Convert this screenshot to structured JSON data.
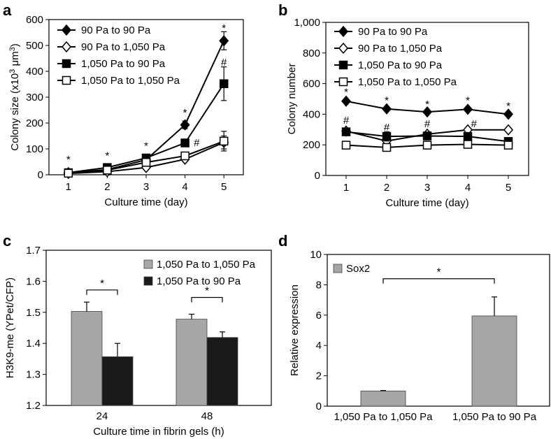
{
  "panels": {
    "a": "a",
    "b": "b",
    "c": "c",
    "d": "d"
  },
  "chart_data": [
    {
      "id": "a",
      "type": "line",
      "ylabel": "Colony size (x10³ μm³)",
      "ylabel_main": "Colony size (x10",
      "ylabel_sup": "3",
      "ylabel_mid": " μm",
      "ylabel_sup2": "3",
      "ylabel_end": ")",
      "xlabel": "Culture time (day)",
      "x": [
        1,
        2,
        3,
        4,
        5
      ],
      "xlim": [
        0.5,
        5.5
      ],
      "ylim": [
        0,
        600
      ],
      "yticks": [
        "0",
        "100",
        "200",
        "300",
        "400",
        "500",
        "600"
      ],
      "ytick_values": [
        0,
        100,
        200,
        300,
        400,
        500,
        600
      ],
      "xticks": [
        "1",
        "2",
        "3",
        "4",
        "5"
      ],
      "series": [
        {
          "name": "90 Pa to 90 Pa",
          "marker": "diamond-filled",
          "values": [
            8,
            20,
            58,
            193,
            518
          ],
          "errors": [
            0,
            0,
            0,
            15,
            35
          ]
        },
        {
          "name": "90 Pa to 1,050 Pa",
          "marker": "diamond-open",
          "values": [
            5,
            12,
            28,
            60,
            125
          ],
          "errors": [
            0,
            0,
            0,
            0,
            25
          ]
        },
        {
          "name": "1,050 Pa to 90 Pa",
          "marker": "square-filled",
          "values": [
            8,
            28,
            65,
            123,
            352
          ],
          "errors": [
            0,
            0,
            0,
            0,
            65
          ]
        },
        {
          "name": "1,050 Pa to 1,050 Pa",
          "marker": "square-open",
          "values": [
            6,
            18,
            48,
            73,
            130
          ],
          "errors": [
            0,
            0,
            0,
            0,
            38
          ]
        }
      ],
      "annotations": [
        {
          "text": "*",
          "x": 1,
          "y": 60
        },
        {
          "text": "*",
          "x": 2,
          "y": 75
        },
        {
          "text": "*",
          "x": 3,
          "y": 112
        },
        {
          "text": "*",
          "x": 4,
          "y": 240
        },
        {
          "text": "*",
          "x": 5,
          "y": 568
        },
        {
          "text": "#",
          "x": 5,
          "y": 435
        },
        {
          "text": "#",
          "x": 4.3,
          "y": 125
        }
      ]
    },
    {
      "id": "b",
      "type": "line",
      "ylabel": "Colony number",
      "xlabel": "Culture time (day)",
      "x": [
        1,
        2,
        3,
        4,
        5
      ],
      "xlim": [
        0.5,
        5.5
      ],
      "ylim": [
        0,
        1000
      ],
      "yticks": [
        "0",
        "200",
        "400",
        "600",
        "800",
        "1,000"
      ],
      "ytick_values": [
        0,
        200,
        400,
        600,
        800,
        1000
      ],
      "xticks": [
        "1",
        "2",
        "3",
        "4",
        "5"
      ],
      "series": [
        {
          "name": "90 Pa to 90 Pa",
          "marker": "diamond-filled",
          "values": [
            485,
            435,
            415,
            432,
            400
          ],
          "errors": [
            0,
            0,
            0,
            0,
            0
          ]
        },
        {
          "name": "90 Pa to 1,050 Pa",
          "marker": "diamond-open",
          "values": [
            290,
            225,
            270,
            298,
            298
          ],
          "errors": [
            0,
            0,
            0,
            0,
            0
          ]
        },
        {
          "name": "1,050 Pa to 90 Pa",
          "marker": "square-filled",
          "values": [
            285,
            255,
            258,
            255,
            222
          ],
          "errors": [
            22,
            30,
            25,
            25,
            18
          ]
        },
        {
          "name": "1,050 Pa to 1,050 Pa",
          "marker": "square-open",
          "values": [
            198,
            183,
            198,
            203,
            198
          ],
          "errors": [
            22,
            20,
            20,
            22,
            15
          ]
        }
      ],
      "annotations": [
        {
          "text": "*",
          "x": 1,
          "y": 545
        },
        {
          "text": "*",
          "x": 2,
          "y": 490
        },
        {
          "text": "*",
          "x": 3,
          "y": 465
        },
        {
          "text": "*",
          "x": 4,
          "y": 490
        },
        {
          "text": "*",
          "x": 5,
          "y": 455
        },
        {
          "text": "#",
          "x": 1,
          "y": 360
        },
        {
          "text": "#",
          "x": 2,
          "y": 315
        },
        {
          "text": "#",
          "x": 3,
          "y": 338
        },
        {
          "text": "#",
          "x": 4.15,
          "y": 338
        }
      ]
    },
    {
      "id": "c",
      "type": "bar",
      "ylabel": "H3K9-me (YPet/CFP)",
      "xlabel": "Culture time in fibrin gels (h)",
      "categories": [
        "24",
        "48"
      ],
      "ylim": [
        1.2,
        1.7
      ],
      "yticks": [
        "1.2",
        "1.3",
        "1.4",
        "1.5",
        "1.6",
        "1.7"
      ],
      "ytick_values": [
        1.2,
        1.3,
        1.4,
        1.5,
        1.6,
        1.7
      ],
      "series": [
        {
          "name": "1,050 Pa to 1,050 Pa",
          "color": "#a6a6a6",
          "values": [
            1.503,
            1.478
          ],
          "errors": [
            0.03,
            0.016
          ]
        },
        {
          "name": "1,050 Pa to 90 Pa",
          "color": "#1a1a1a",
          "values": [
            1.357,
            1.419
          ],
          "errors": [
            0.043,
            0.018
          ]
        }
      ],
      "significance": [
        {
          "text": "*",
          "category": 0,
          "y": 1.572
        },
        {
          "text": "*",
          "category": 1,
          "y": 1.548
        }
      ]
    },
    {
      "id": "d",
      "type": "bar",
      "ylabel": "Relative expression",
      "categories": [
        "1,050 Pa to 1,050 Pa",
        "1,050 Pa to 90 Pa"
      ],
      "ylim": [
        0,
        10
      ],
      "yticks": [
        "0",
        "2",
        "4",
        "6",
        "8",
        "10"
      ],
      "ytick_values": [
        0,
        2,
        4,
        6,
        8,
        10
      ],
      "series": [
        {
          "name": "Sox2",
          "color": "#a6a6a6",
          "values": [
            1.0,
            5.95
          ],
          "errors": [
            0.03,
            1.25
          ]
        }
      ],
      "significance": [
        {
          "text": "*",
          "from": 0,
          "to": 1,
          "y": 8.4
        }
      ]
    }
  ]
}
